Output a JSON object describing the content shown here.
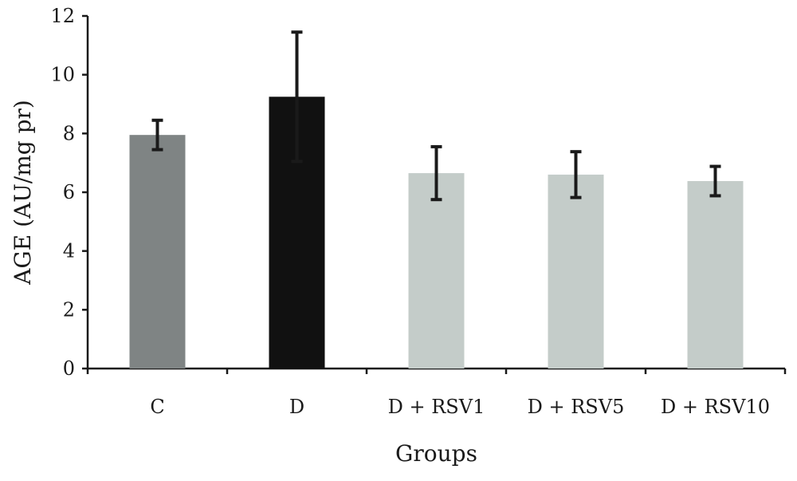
{
  "chart_data": {
    "type": "bar",
    "title": "",
    "xlabel": "Groups",
    "ylabel": "AGE (AU/mg pr)",
    "ylim": [
      0,
      12
    ],
    "yticks": [
      0,
      2,
      4,
      6,
      8,
      10,
      12
    ],
    "categories": [
      "C",
      "D",
      "D + RSV1",
      "D + RSV5",
      "D + RSV10"
    ],
    "values": [
      7.95,
      9.25,
      6.65,
      6.6,
      6.38
    ],
    "errors": [
      0.5,
      2.2,
      0.9,
      0.78,
      0.5
    ],
    "colors": [
      "#7f8484",
      "#111111",
      "#c4ccc9",
      "#c4ccc9",
      "#c4ccc9"
    ],
    "grid": false,
    "legend": "none"
  }
}
